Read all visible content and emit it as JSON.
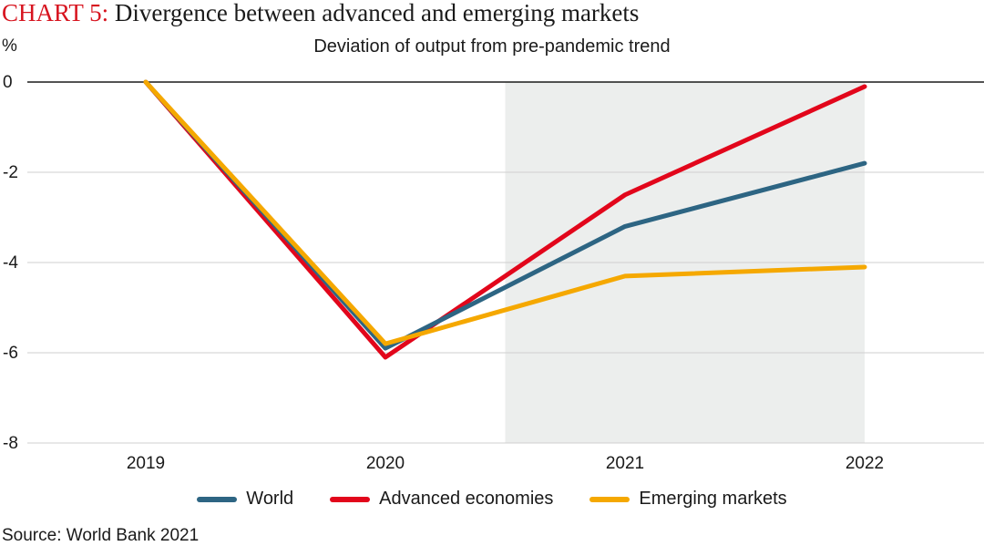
{
  "chart_data": {
    "type": "line",
    "title_prefix": "CHART 5:",
    "title": "Divergence between advanced and emerging markets",
    "subtitle": "Deviation of output from pre-pandemic trend",
    "ylabel": "%",
    "ylim": [
      -8,
      0
    ],
    "yticks": [
      0,
      -2,
      -4,
      -6,
      -8
    ],
    "ytick_labels": [
      "0",
      "-2",
      "-4",
      "-6",
      "-8"
    ],
    "categories": [
      "2019",
      "2020",
      "2021",
      "2022"
    ],
    "forecast_shade": {
      "from": 2020.5,
      "to": 2022
    },
    "series": [
      {
        "name": "World",
        "color": "#2d6583",
        "values": [
          0,
          -5.9,
          -3.2,
          -1.8
        ]
      },
      {
        "name": "Advanced economies",
        "color": "#e2061b",
        "values": [
          0,
          -6.1,
          -2.5,
          -0.1
        ]
      },
      {
        "name": "Emerging markets",
        "color": "#f5a800",
        "values": [
          0,
          -5.8,
          -4.3,
          -4.1
        ]
      }
    ],
    "source": "Source: World Bank 2021"
  }
}
